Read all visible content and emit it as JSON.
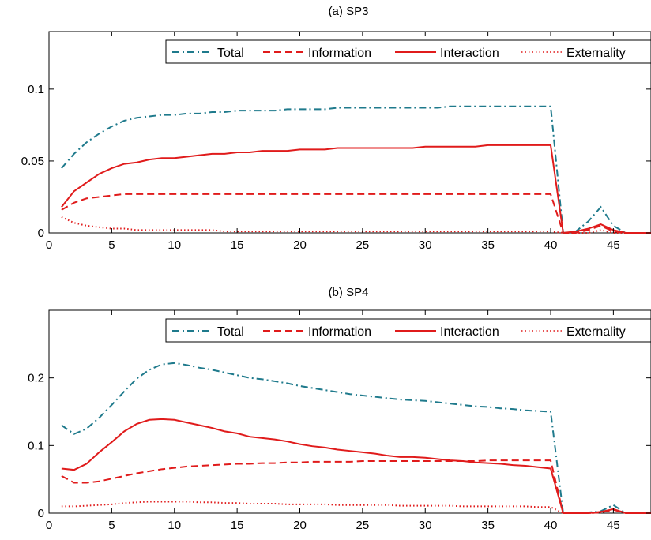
{
  "chart_data": [
    {
      "type": "line",
      "title": "(a) SP3",
      "xlim": [
        0,
        48
      ],
      "ylim": [
        0,
        0.14
      ],
      "x_ticks": [
        0,
        5,
        10,
        15,
        20,
        25,
        30,
        35,
        40,
        45
      ],
      "x_tick_labels": [
        "0",
        "5",
        "10",
        "15",
        "20",
        "25",
        "30",
        "35",
        "40",
        "45"
      ],
      "y_ticks": [
        0,
        0.05,
        0.1
      ],
      "y_tick_labels": [
        "0",
        "0.05",
        "0.1"
      ],
      "grid": false,
      "legend_placement": "top-right",
      "x": [
        1,
        2,
        3,
        4,
        5,
        6,
        7,
        8,
        9,
        10,
        11,
        12,
        13,
        14,
        15,
        16,
        17,
        18,
        19,
        20,
        21,
        22,
        23,
        24,
        25,
        26,
        27,
        28,
        29,
        30,
        31,
        32,
        33,
        34,
        35,
        36,
        37,
        38,
        39,
        40,
        41,
        42,
        43,
        44,
        45,
        46,
        47,
        48
      ],
      "series": [
        {
          "name": "Total",
          "color": "#1f7a8c",
          "dash": "dashdot",
          "values": [
            0.045,
            0.055,
            0.063,
            0.069,
            0.074,
            0.078,
            0.08,
            0.081,
            0.082,
            0.082,
            0.083,
            0.083,
            0.084,
            0.084,
            0.085,
            0.085,
            0.085,
            0.085,
            0.086,
            0.086,
            0.086,
            0.086,
            0.087,
            0.087,
            0.087,
            0.087,
            0.087,
            0.087,
            0.087,
            0.087,
            0.087,
            0.088,
            0.088,
            0.088,
            0.088,
            0.088,
            0.088,
            0.088,
            0.088,
            0.088,
            0.0,
            0.001,
            0.008,
            0.018,
            0.005,
            0.0,
            0.0,
            0.0
          ]
        },
        {
          "name": "Information",
          "color": "#e01b1b",
          "dash": "dashed",
          "values": [
            0.016,
            0.021,
            0.024,
            0.025,
            0.026,
            0.027,
            0.027,
            0.027,
            0.027,
            0.027,
            0.027,
            0.027,
            0.027,
            0.027,
            0.027,
            0.027,
            0.027,
            0.027,
            0.027,
            0.027,
            0.027,
            0.027,
            0.027,
            0.027,
            0.027,
            0.027,
            0.027,
            0.027,
            0.027,
            0.027,
            0.027,
            0.027,
            0.027,
            0.027,
            0.027,
            0.027,
            0.027,
            0.027,
            0.027,
            0.027,
            0.0,
            0.0,
            0.002,
            0.005,
            0.001,
            0.0,
            0.0,
            0.0
          ]
        },
        {
          "name": "Interaction",
          "color": "#e01b1b",
          "dash": "solid",
          "values": [
            0.018,
            0.029,
            0.035,
            0.041,
            0.045,
            0.048,
            0.049,
            0.051,
            0.052,
            0.052,
            0.053,
            0.054,
            0.055,
            0.055,
            0.056,
            0.056,
            0.057,
            0.057,
            0.057,
            0.058,
            0.058,
            0.058,
            0.059,
            0.059,
            0.059,
            0.059,
            0.059,
            0.059,
            0.059,
            0.06,
            0.06,
            0.06,
            0.06,
            0.06,
            0.061,
            0.061,
            0.061,
            0.061,
            0.061,
            0.061,
            0.0,
            0.001,
            0.003,
            0.006,
            0.002,
            0.0,
            0.0,
            0.0
          ]
        },
        {
          "name": "Externality",
          "color": "#e01b1b",
          "dash": "dotted",
          "values": [
            0.011,
            0.007,
            0.005,
            0.004,
            0.003,
            0.003,
            0.002,
            0.002,
            0.002,
            0.002,
            0.002,
            0.002,
            0.002,
            0.001,
            0.001,
            0.001,
            0.001,
            0.001,
            0.001,
            0.001,
            0.001,
            0.001,
            0.001,
            0.001,
            0.001,
            0.001,
            0.001,
            0.001,
            0.001,
            0.001,
            0.001,
            0.001,
            0.001,
            0.001,
            0.001,
            0.001,
            0.001,
            0.001,
            0.001,
            0.001,
            0.0,
            0.0,
            0.0,
            0.002,
            0.0,
            0.0,
            0.0,
            0.0
          ]
        }
      ]
    },
    {
      "type": "line",
      "title": "(b) SP4",
      "xlim": [
        0,
        48
      ],
      "ylim": [
        0,
        0.3
      ],
      "x_ticks": [
        0,
        5,
        10,
        15,
        20,
        25,
        30,
        35,
        40,
        45
      ],
      "x_tick_labels": [
        "0",
        "5",
        "10",
        "15",
        "20",
        "25",
        "30",
        "35",
        "40",
        "45"
      ],
      "y_ticks": [
        0,
        0.1,
        0.2
      ],
      "y_tick_labels": [
        "0",
        "0.1",
        "0.2"
      ],
      "grid": false,
      "legend_placement": "top-right",
      "x": [
        1,
        2,
        3,
        4,
        5,
        6,
        7,
        8,
        9,
        10,
        11,
        12,
        13,
        14,
        15,
        16,
        17,
        18,
        19,
        20,
        21,
        22,
        23,
        24,
        25,
        26,
        27,
        28,
        29,
        30,
        31,
        32,
        33,
        34,
        35,
        36,
        37,
        38,
        39,
        40,
        41,
        42,
        43,
        44,
        45,
        46,
        47,
        48
      ],
      "series": [
        {
          "name": "Total",
          "color": "#1f7a8c",
          "dash": "dashdot",
          "values": [
            0.13,
            0.117,
            0.125,
            0.141,
            0.16,
            0.18,
            0.199,
            0.212,
            0.22,
            0.222,
            0.219,
            0.215,
            0.212,
            0.208,
            0.204,
            0.2,
            0.198,
            0.195,
            0.192,
            0.188,
            0.185,
            0.182,
            0.179,
            0.176,
            0.174,
            0.172,
            0.17,
            0.168,
            0.167,
            0.166,
            0.164,
            0.162,
            0.16,
            0.158,
            0.157,
            0.155,
            0.154,
            0.152,
            0.151,
            0.15,
            0.0,
            0.0,
            0.001,
            0.003,
            0.012,
            0.0,
            0.0,
            0.0
          ]
        },
        {
          "name": "Information",
          "color": "#e01b1b",
          "dash": "dashed",
          "values": [
            0.055,
            0.045,
            0.045,
            0.047,
            0.051,
            0.055,
            0.059,
            0.062,
            0.065,
            0.067,
            0.069,
            0.07,
            0.071,
            0.072,
            0.073,
            0.073,
            0.074,
            0.074,
            0.075,
            0.075,
            0.076,
            0.076,
            0.076,
            0.076,
            0.077,
            0.077,
            0.077,
            0.077,
            0.077,
            0.077,
            0.077,
            0.077,
            0.077,
            0.077,
            0.078,
            0.078,
            0.078,
            0.078,
            0.078,
            0.078,
            0.0,
            0.0,
            0.0,
            0.001,
            0.005,
            0.0,
            0.0,
            0.0
          ]
        },
        {
          "name": "Interaction",
          "color": "#e01b1b",
          "dash": "solid",
          "values": [
            0.066,
            0.064,
            0.073,
            0.09,
            0.105,
            0.121,
            0.132,
            0.138,
            0.139,
            0.138,
            0.134,
            0.13,
            0.126,
            0.121,
            0.118,
            0.113,
            0.111,
            0.109,
            0.106,
            0.102,
            0.099,
            0.097,
            0.094,
            0.092,
            0.09,
            0.088,
            0.085,
            0.083,
            0.083,
            0.082,
            0.08,
            0.078,
            0.077,
            0.075,
            0.074,
            0.073,
            0.071,
            0.07,
            0.068,
            0.066,
            0.0,
            0.0,
            0.0,
            0.002,
            0.006,
            0.0,
            0.0,
            0.0
          ]
        },
        {
          "name": "Externality",
          "color": "#e01b1b",
          "dash": "dotted",
          "values": [
            0.01,
            0.01,
            0.011,
            0.012,
            0.013,
            0.015,
            0.016,
            0.017,
            0.017,
            0.017,
            0.017,
            0.016,
            0.016,
            0.015,
            0.015,
            0.014,
            0.014,
            0.014,
            0.013,
            0.013,
            0.013,
            0.013,
            0.012,
            0.012,
            0.012,
            0.012,
            0.012,
            0.011,
            0.011,
            0.011,
            0.011,
            0.011,
            0.01,
            0.01,
            0.01,
            0.01,
            0.01,
            0.01,
            0.009,
            0.009,
            0.0,
            0.0,
            0.0,
            0.001,
            0.006,
            0.0,
            0.0,
            0.0
          ]
        }
      ]
    }
  ]
}
